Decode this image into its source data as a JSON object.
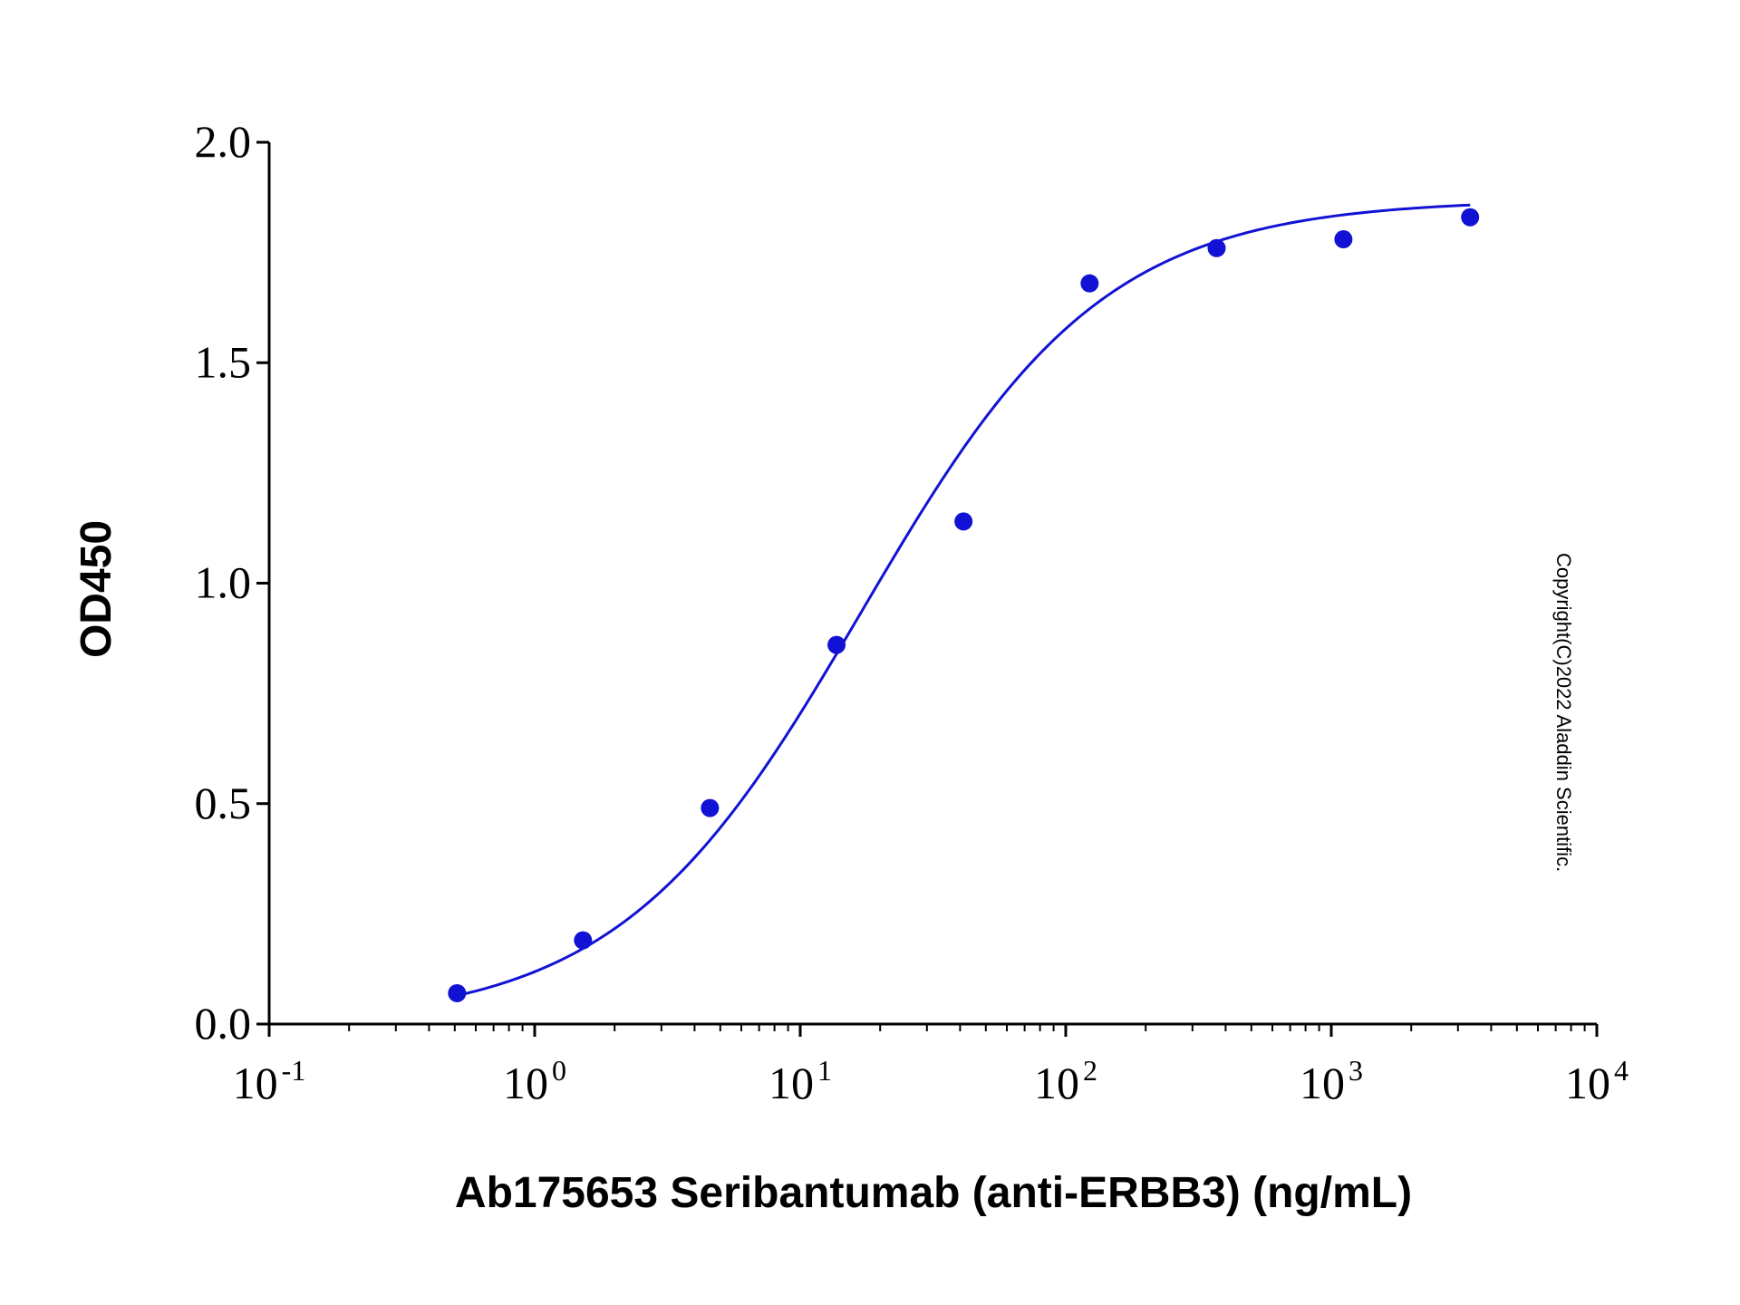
{
  "chart_data": {
    "type": "scatter",
    "title": "",
    "xlabel": "Ab175653 Seribantumab (anti-ERBB3) (ng/mL)",
    "ylabel": "OD450",
    "x_scale": "log10",
    "xlim": [
      0.1,
      10000
    ],
    "ylim": [
      0.0,
      2.0
    ],
    "x_ticks": [
      {
        "base": "10",
        "exp": "-1",
        "value": 0.1
      },
      {
        "base": "10",
        "exp": "0",
        "value": 1
      },
      {
        "base": "10",
        "exp": "1",
        "value": 10
      },
      {
        "base": "10",
        "exp": "2",
        "value": 100
      },
      {
        "base": "10",
        "exp": "3",
        "value": 1000
      },
      {
        "base": "10",
        "exp": "4",
        "value": 10000
      }
    ],
    "y_ticks": [
      {
        "label": "0.0",
        "value": 0.0
      },
      {
        "label": "0.5",
        "value": 0.5
      },
      {
        "label": "1.0",
        "value": 1.0
      },
      {
        "label": "1.5",
        "value": 1.5
      },
      {
        "label": "2.0",
        "value": 2.0
      }
    ],
    "grid": false,
    "legend": "none",
    "series": [
      {
        "color": "#1212d4",
        "points": [
          {
            "x": 0.51,
            "y": 0.07
          },
          {
            "x": 1.52,
            "y": 0.19
          },
          {
            "x": 4.57,
            "y": 0.49
          },
          {
            "x": 13.7,
            "y": 0.86
          },
          {
            "x": 41.2,
            "y": 1.14
          },
          {
            "x": 123,
            "y": 1.68
          },
          {
            "x": 370,
            "y": 1.76
          },
          {
            "x": 1111,
            "y": 1.78
          },
          {
            "x": 3333,
            "y": 1.83
          }
        ],
        "fit": {
          "model": "4PL",
          "bottom": 0.0,
          "top": 1.87,
          "ec50": 17,
          "hill": 0.95,
          "x_range": [
            0.5,
            3333
          ]
        }
      }
    ],
    "annotations": [
      "Copyright(C)2022 Aladdin Scientific."
    ]
  }
}
